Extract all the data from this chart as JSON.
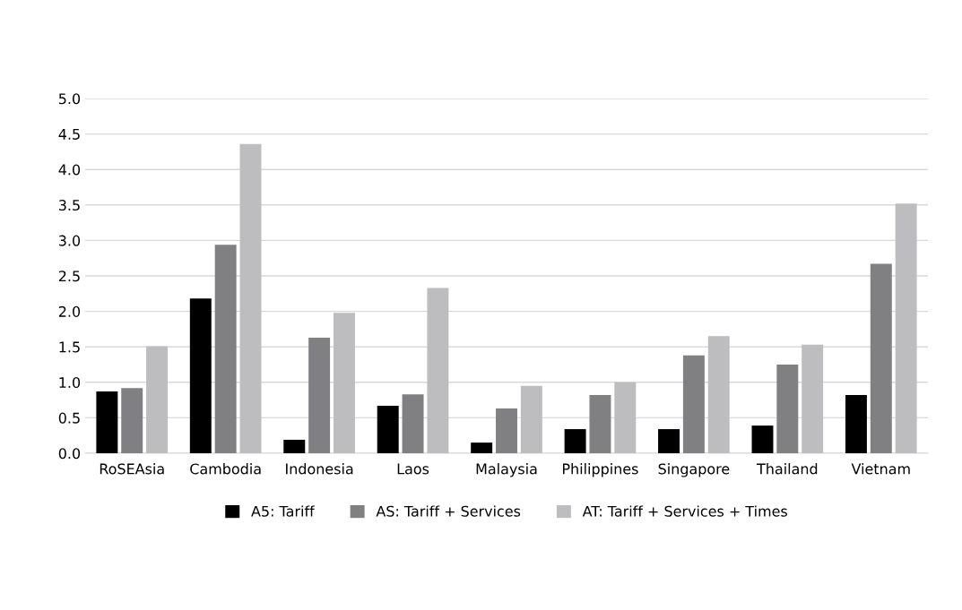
{
  "chart_data": {
    "type": "bar",
    "categories": [
      "RoSEAsia",
      "Cambodia",
      "Indonesia",
      "Laos",
      "Malaysia",
      "Philippines",
      "Singapore",
      "Thailand",
      "Vietnam"
    ],
    "series": [
      {
        "name": "A5: Tariff",
        "color": "#000000",
        "values": [
          0.87,
          2.18,
          0.19,
          0.67,
          0.15,
          0.34,
          0.34,
          0.39,
          0.82
        ]
      },
      {
        "name": "AS: Tariff + Services",
        "color": "#808083",
        "values": [
          0.92,
          2.94,
          1.63,
          0.83,
          0.63,
          0.82,
          1.38,
          1.25,
          2.67
        ]
      },
      {
        "name": "AT: Tariff + Services + Times",
        "color": "#bdbdbf",
        "values": [
          1.51,
          4.36,
          1.98,
          2.33,
          0.95,
          1.0,
          1.65,
          1.53,
          3.52
        ]
      }
    ],
    "ylim": [
      0,
      5.0
    ],
    "yticks": [
      {
        "value": 0,
        "label": "0.0"
      },
      {
        "value": 0.5,
        "label": "0.5"
      },
      {
        "value": 1.0,
        "label": "1.0"
      },
      {
        "value": 1.5,
        "label": "1.5"
      },
      {
        "value": 2.0,
        "label": "2.0"
      },
      {
        "value": 2.5,
        "label": "2.5"
      },
      {
        "value": 3.0,
        "label": "3.0"
      },
      {
        "value": 3.5,
        "label": "3.5"
      },
      {
        "value": 4.0,
        "label": "4.0"
      },
      {
        "value": 4.5,
        "label": "4.5"
      },
      {
        "value": 5.0,
        "label": "5.0"
      }
    ],
    "grid": "y",
    "legend": "bottom"
  }
}
